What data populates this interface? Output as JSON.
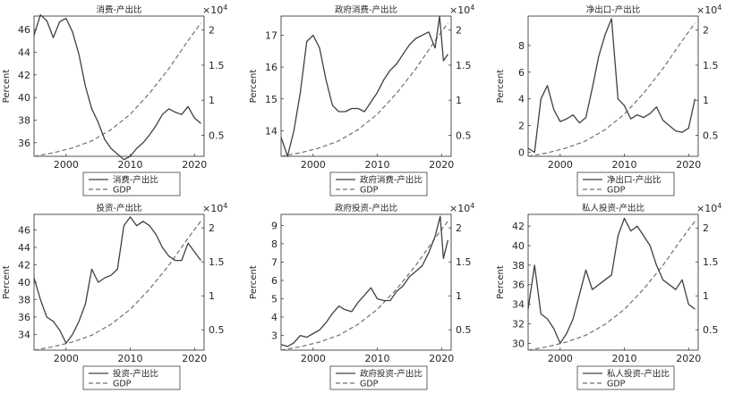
{
  "figure": {
    "ylabel": "Percent",
    "x_ticks": [
      2000,
      2010,
      2020
    ],
    "right_ticks": [
      0.5,
      1,
      1.5,
      2
    ],
    "right_ticks_labels": [
      "0.5",
      "1",
      "1.5",
      "2"
    ],
    "exp_base": "×10",
    "exp_power": "4",
    "gdp_legend": "GDP"
  },
  "chart_data": [
    {
      "type": "line",
      "title": "消费-产出比",
      "xlim": [
        1995,
        2021.5
      ],
      "ylim": [
        34.8,
        47.2
      ],
      "y_ticks": [
        36,
        38,
        40,
        42,
        44,
        46
      ],
      "gdp_ylim": [
        0.2,
        2.2
      ],
      "series_name": "消费-产出比",
      "series_x": [
        1995,
        1996,
        1997,
        1998,
        1999,
        2000,
        2001,
        2002,
        2003,
        2004,
        2005,
        2006,
        2007,
        2008,
        2009,
        2010,
        2011,
        2012,
        2013,
        2014,
        2015,
        2016,
        2017,
        2018,
        2019,
        2020,
        2021
      ],
      "series_y": [
        45.5,
        47.3,
        46.8,
        45.3,
        46.7,
        47.0,
        45.8,
        43.8,
        41.0,
        39.0,
        37.8,
        36.3,
        35.5,
        35.0,
        34.5,
        34.8,
        35.5,
        36.0,
        36.7,
        37.5,
        38.5,
        39.0,
        38.7,
        38.5,
        39.2,
        38.2,
        37.7
      ],
      "gdp_x": [
        1995,
        1998,
        2001,
        2004,
        2007,
        2010,
        2013,
        2016,
        2019,
        2021
      ],
      "gdp": [
        0.2,
        0.25,
        0.32,
        0.42,
        0.58,
        0.8,
        1.1,
        1.45,
        1.85,
        2.1
      ]
    },
    {
      "type": "line",
      "title": "政府消费-产出比",
      "xlim": [
        1995,
        2021.5
      ],
      "ylim": [
        13.2,
        17.6
      ],
      "y_ticks": [
        14,
        15,
        16,
        17
      ],
      "gdp_ylim": [
        0.2,
        2.2
      ],
      "series_name": "政府消费-产出比",
      "series_x": [
        1995,
        1996,
        1997,
        1998,
        1999,
        2000,
        2001,
        2002,
        2003,
        2004,
        2005,
        2006,
        2007,
        2008,
        2009,
        2010,
        2011,
        2012,
        2013,
        2014,
        2015,
        2016,
        2017,
        2018,
        2019,
        2019.7,
        2020.3,
        2021
      ],
      "series_y": [
        13.8,
        13.2,
        14.0,
        15.2,
        16.8,
        17.0,
        16.6,
        15.6,
        14.8,
        14.6,
        14.6,
        14.7,
        14.7,
        14.6,
        14.9,
        15.2,
        15.6,
        15.9,
        16.1,
        16.4,
        16.7,
        16.9,
        17.0,
        17.1,
        16.6,
        17.6,
        16.2,
        16.4
      ],
      "gdp_x": [
        1995,
        1998,
        2001,
        2004,
        2007,
        2010,
        2013,
        2016,
        2019,
        2021
      ],
      "gdp": [
        0.2,
        0.25,
        0.32,
        0.42,
        0.58,
        0.8,
        1.1,
        1.45,
        1.85,
        2.1
      ]
    },
    {
      "type": "line",
      "title": "净出口-产出比",
      "xlim": [
        1995,
        2021.5
      ],
      "ylim": [
        -0.3,
        10.2
      ],
      "y_ticks": [
        0,
        2,
        4,
        6,
        8
      ],
      "gdp_ylim": [
        0.2,
        2.2
      ],
      "series_name": "净出口-产出比",
      "series_x": [
        1995,
        1996,
        1997,
        1998,
        1999,
        2000,
        2001,
        2002,
        2003,
        2004,
        2005,
        2006,
        2007,
        2008,
        2009,
        2010,
        2011,
        2012,
        2013,
        2014,
        2015,
        2016,
        2017,
        2018,
        2019,
        2020,
        2021
      ],
      "series_y": [
        0.3,
        0.0,
        4.0,
        5.0,
        3.2,
        2.3,
        2.5,
        2.8,
        2.2,
        2.6,
        4.8,
        7.2,
        8.8,
        10.0,
        4.0,
        3.5,
        2.5,
        2.8,
        2.6,
        2.9,
        3.4,
        2.4,
        2.0,
        1.6,
        1.5,
        1.8,
        4.0
      ],
      "gdp_x": [
        1995,
        1998,
        2001,
        2004,
        2007,
        2010,
        2013,
        2016,
        2019,
        2021
      ],
      "gdp": [
        0.2,
        0.25,
        0.32,
        0.42,
        0.58,
        0.8,
        1.1,
        1.45,
        1.85,
        2.1
      ]
    },
    {
      "type": "line",
      "title": "投资-产出比",
      "xlim": [
        1995,
        2021.5
      ],
      "ylim": [
        32.2,
        47.8
      ],
      "y_ticks": [
        34,
        36,
        38,
        40,
        42,
        44,
        46
      ],
      "gdp_ylim": [
        0.2,
        2.2
      ],
      "series_name": "投资-产出比",
      "series_x": [
        1995,
        1996,
        1997,
        1998,
        1999,
        2000,
        2001,
        2002,
        2003,
        2004,
        2005,
        2006,
        2007,
        2008,
        2009,
        2010,
        2011,
        2012,
        2013,
        2014,
        2015,
        2016,
        2017,
        2018,
        2019,
        2020,
        2021
      ],
      "series_y": [
        40.5,
        38.0,
        36.0,
        35.5,
        34.5,
        33.0,
        34.0,
        35.5,
        37.5,
        41.5,
        40.0,
        40.5,
        40.8,
        41.5,
        46.5,
        47.5,
        46.5,
        47.0,
        46.5,
        45.5,
        44.0,
        43.0,
        42.5,
        42.5,
        44.5,
        43.5,
        42.5
      ],
      "gdp_x": [
        1995,
        1998,
        2001,
        2004,
        2007,
        2010,
        2013,
        2016,
        2019,
        2021
      ],
      "gdp": [
        0.2,
        0.25,
        0.32,
        0.42,
        0.58,
        0.8,
        1.1,
        1.45,
        1.85,
        2.1
      ]
    },
    {
      "type": "line",
      "title": "政府投资-产出比",
      "xlim": [
        1995,
        2021.5
      ],
      "ylim": [
        2.2,
        9.6
      ],
      "y_ticks": [
        3,
        4,
        5,
        6,
        7,
        8,
        9
      ],
      "gdp_ylim": [
        0.2,
        2.2
      ],
      "series_name": "政府投资-产出比",
      "series_x": [
        1995,
        1996,
        1997,
        1998,
        1999,
        2000,
        2001,
        2002,
        2003,
        2004,
        2005,
        2006,
        2007,
        2008,
        2009,
        2010,
        2011,
        2012,
        2013,
        2014,
        2015,
        2016,
        2017,
        2018,
        2019,
        2019.8,
        2020.3,
        2021
      ],
      "series_y": [
        2.5,
        2.4,
        2.6,
        3.0,
        2.9,
        3.1,
        3.3,
        3.7,
        4.2,
        4.6,
        4.4,
        4.3,
        4.8,
        5.2,
        5.6,
        5.0,
        4.9,
        4.9,
        5.4,
        5.7,
        6.2,
        6.5,
        6.8,
        7.5,
        8.4,
        9.5,
        7.2,
        8.2
      ],
      "gdp_x": [
        1995,
        1998,
        2001,
        2004,
        2007,
        2010,
        2013,
        2016,
        2019,
        2021
      ],
      "gdp": [
        0.2,
        0.25,
        0.32,
        0.42,
        0.58,
        0.8,
        1.1,
        1.45,
        1.85,
        2.1
      ]
    },
    {
      "type": "line",
      "title": "私人投资-产出比",
      "xlim": [
        1995,
        2021.5
      ],
      "ylim": [
        29.3,
        43.2
      ],
      "y_ticks": [
        30,
        32,
        34,
        36,
        38,
        40,
        42
      ],
      "gdp_ylim": [
        0.2,
        2.2
      ],
      "series_name": "私人投资-产出比",
      "series_x": [
        1995,
        1996,
        1997,
        1998,
        1999,
        2000,
        2001,
        2002,
        2003,
        2004,
        2005,
        2006,
        2007,
        2008,
        2009,
        2010,
        2011,
        2012,
        2013,
        2014,
        2015,
        2016,
        2017,
        2018,
        2019,
        2020,
        2021
      ],
      "series_y": [
        33.5,
        38.0,
        33.0,
        32.5,
        31.5,
        30.0,
        31.0,
        32.5,
        35.0,
        37.5,
        35.5,
        36.0,
        36.5,
        37.0,
        41.0,
        42.8,
        41.5,
        42.0,
        41.0,
        40.0,
        38.0,
        36.5,
        36.0,
        35.5,
        36.5,
        34.0,
        33.5
      ],
      "gdp_x": [
        1995,
        1998,
        2001,
        2004,
        2007,
        2010,
        2013,
        2016,
        2019,
        2021
      ],
      "gdp": [
        0.2,
        0.25,
        0.32,
        0.42,
        0.58,
        0.8,
        1.1,
        1.45,
        1.85,
        2.1
      ]
    }
  ]
}
